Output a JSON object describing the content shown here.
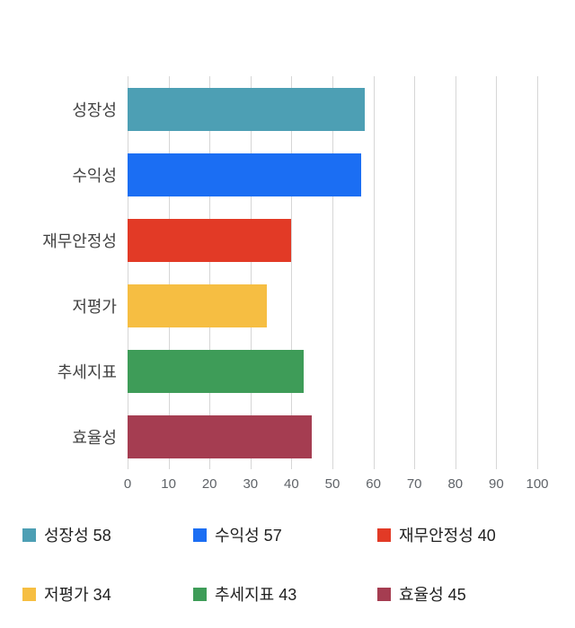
{
  "chart_data": {
    "type": "bar",
    "orientation": "horizontal",
    "title": "",
    "xlabel": "",
    "ylabel": "",
    "xlim": [
      0,
      100
    ],
    "xticks": [
      0,
      10,
      20,
      30,
      40,
      50,
      60,
      70,
      80,
      90,
      100
    ],
    "grid": true,
    "legend_position": "bottom",
    "categories": [
      "성장성",
      "수익성",
      "재무안정성",
      "저평가",
      "추세지표",
      "효율성"
    ],
    "values": [
      58,
      57,
      40,
      34,
      43,
      45
    ],
    "colors": [
      "#4d9fb4",
      "#1b6ef3",
      "#e23a26",
      "#f6be42",
      "#3e9c58",
      "#a53d51"
    ],
    "legend": [
      {
        "label": "성장성 58",
        "color": "#4d9fb4"
      },
      {
        "label": "수익성 57",
        "color": "#1b6ef3"
      },
      {
        "label": "재무안정성 40",
        "color": "#e23a26"
      },
      {
        "label": "저평가 34",
        "color": "#f6be42"
      },
      {
        "label": "추세지표 43",
        "color": "#3e9c58"
      },
      {
        "label": "효율성 45",
        "color": "#a53d51"
      }
    ]
  }
}
